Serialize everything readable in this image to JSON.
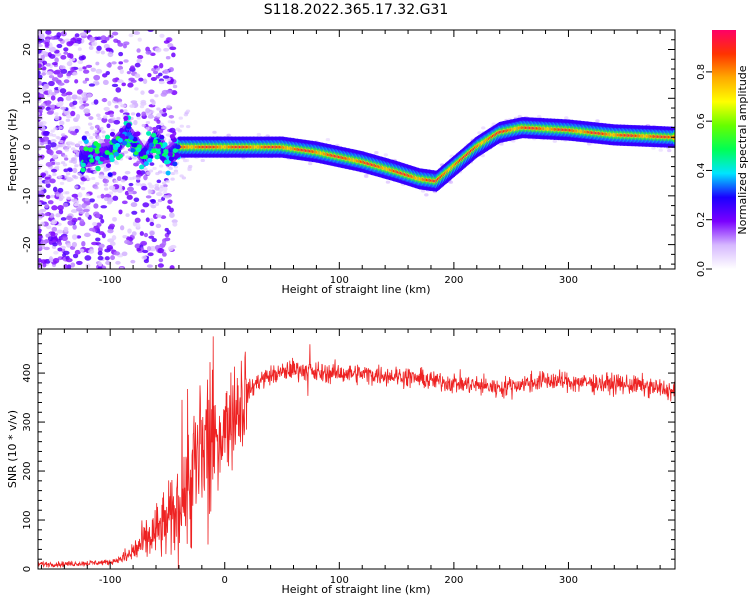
{
  "title": "S118.2022.365.17.32.G31",
  "chart_data": [
    {
      "type": "heatmap",
      "title": "S118.2022.365.17.32.G31",
      "xlabel": "Height of straight line (km)",
      "ylabel": "Frequency (Hz)",
      "xlim": [
        -163,
        393
      ],
      "ylim": [
        -25,
        24
      ],
      "xticks": [
        -100,
        0,
        100,
        200,
        300
      ],
      "yticks": [
        -20,
        -10,
        0,
        10,
        20
      ],
      "colorbar": {
        "label": "Normalized spectral amplitude",
        "range": [
          0.0,
          0.97
        ],
        "ticks": [
          "0.0",
          "0.2",
          "0.4",
          "0.6",
          "0.8"
        ],
        "colors": [
          "#ffffff",
          "#d6b8ff",
          "#7a00ff",
          "#1a00ff",
          "#00e5ff",
          "#00ff55",
          "#66ff00",
          "#ffff00",
          "#ffaa00",
          "#ff3300",
          "#ff0066"
        ]
      },
      "ridge": {
        "x": [
          -120,
          -100,
          -85,
          -70,
          -60,
          -50,
          -40,
          -20,
          0,
          50,
          80,
          100,
          120,
          150,
          170,
          185,
          200,
          220,
          240,
          260,
          300,
          340,
          393
        ],
        "y": [
          -2,
          -1,
          3,
          -2,
          2,
          -2,
          0,
          0,
          0,
          0,
          -1,
          -2,
          -3,
          -5,
          -6.5,
          -7,
          -4,
          0,
          3,
          4,
          3.5,
          2.5,
          2
        ]
      }
    },
    {
      "type": "line",
      "xlabel": "Height of straight line (km)",
      "ylabel": "SNR (10 * v/v)",
      "xlim": [
        -163,
        393
      ],
      "ylim": [
        0,
        490
      ],
      "xticks": [
        -100,
        0,
        100,
        200,
        300
      ],
      "yticks": [
        0,
        100,
        200,
        300,
        400
      ],
      "series": [
        {
          "name": "SNR",
          "color": "#ee2222",
          "x": [
            -163,
            -140,
            -120,
            -100,
            -85,
            -75,
            -65,
            -55,
            -45,
            -35,
            -25,
            -15,
            -5,
            0,
            10,
            20,
            30,
            40,
            50,
            60,
            70,
            80,
            100,
            120,
            140,
            160,
            180,
            200,
            220,
            240,
            260,
            280,
            300,
            320,
            340,
            360,
            380,
            393
          ],
          "y": [
            10,
            10,
            12,
            14,
            25,
            45,
            65,
            85,
            105,
            150,
            210,
            240,
            270,
            290,
            330,
            360,
            385,
            395,
            400,
            410,
            405,
            400,
            400,
            398,
            396,
            392,
            385,
            380,
            375,
            370,
            378,
            385,
            382,
            380,
            378,
            375,
            368,
            362
          ]
        }
      ]
    }
  ]
}
